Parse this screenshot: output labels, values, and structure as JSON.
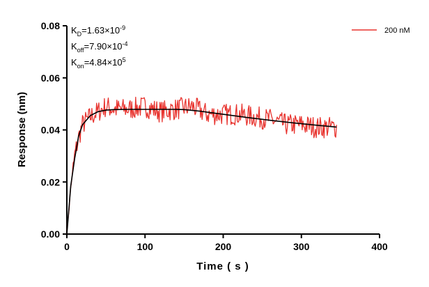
{
  "chart_data": {
    "type": "line",
    "xlabel": "Time ( s )",
    "ylabel": "Response (nm)",
    "xlim": [
      0,
      400
    ],
    "ylim": [
      0,
      0.08
    ],
    "x_ticks": [
      "0",
      "100",
      "200",
      "300",
      "400"
    ],
    "y_ticks": [
      "0.00",
      "0.02",
      "0.04",
      "0.06",
      "0.08"
    ],
    "grid": false,
    "legend_position": "top-right",
    "annotations": [
      {
        "base": "K",
        "sub": "D",
        "mid": "=1.63×10",
        "sup": "-9"
      },
      {
        "base": "K",
        "sub": "off",
        "mid": "=7.90×10",
        "sup": "-4"
      },
      {
        "base": "K",
        "sub": "on",
        "mid": "=4.84×10",
        "sup": "5"
      }
    ],
    "series": [
      {
        "name": "200 nM",
        "color": "#e8342f",
        "style": "noisy measured data",
        "x": [
          0,
          5,
          10,
          15,
          20,
          30,
          40,
          50,
          60,
          80,
          100,
          120,
          140,
          160,
          180,
          200,
          220,
          240,
          260,
          280,
          300,
          320,
          345
        ],
        "y": [
          0.0,
          0.018,
          0.03,
          0.037,
          0.042,
          0.045,
          0.047,
          0.049,
          0.048,
          0.048,
          0.049,
          0.047,
          0.048,
          0.049,
          0.046,
          0.046,
          0.046,
          0.045,
          0.044,
          0.042,
          0.042,
          0.041,
          0.041
        ]
      },
      {
        "name": "",
        "color": "#000000",
        "style": "fitted curve",
        "x": [
          0,
          5,
          10,
          15,
          20,
          30,
          40,
          50,
          60,
          80,
          100,
          120,
          140,
          150,
          170,
          200,
          230,
          260,
          290,
          320,
          345
        ],
        "y": [
          0.0,
          0.0185,
          0.029,
          0.0375,
          0.042,
          0.0455,
          0.047,
          0.0476,
          0.0478,
          0.0479,
          0.0479,
          0.0479,
          0.0479,
          0.0478,
          0.0472,
          0.046,
          0.0448,
          0.0437,
          0.0427,
          0.0418,
          0.0411
        ]
      }
    ]
  }
}
